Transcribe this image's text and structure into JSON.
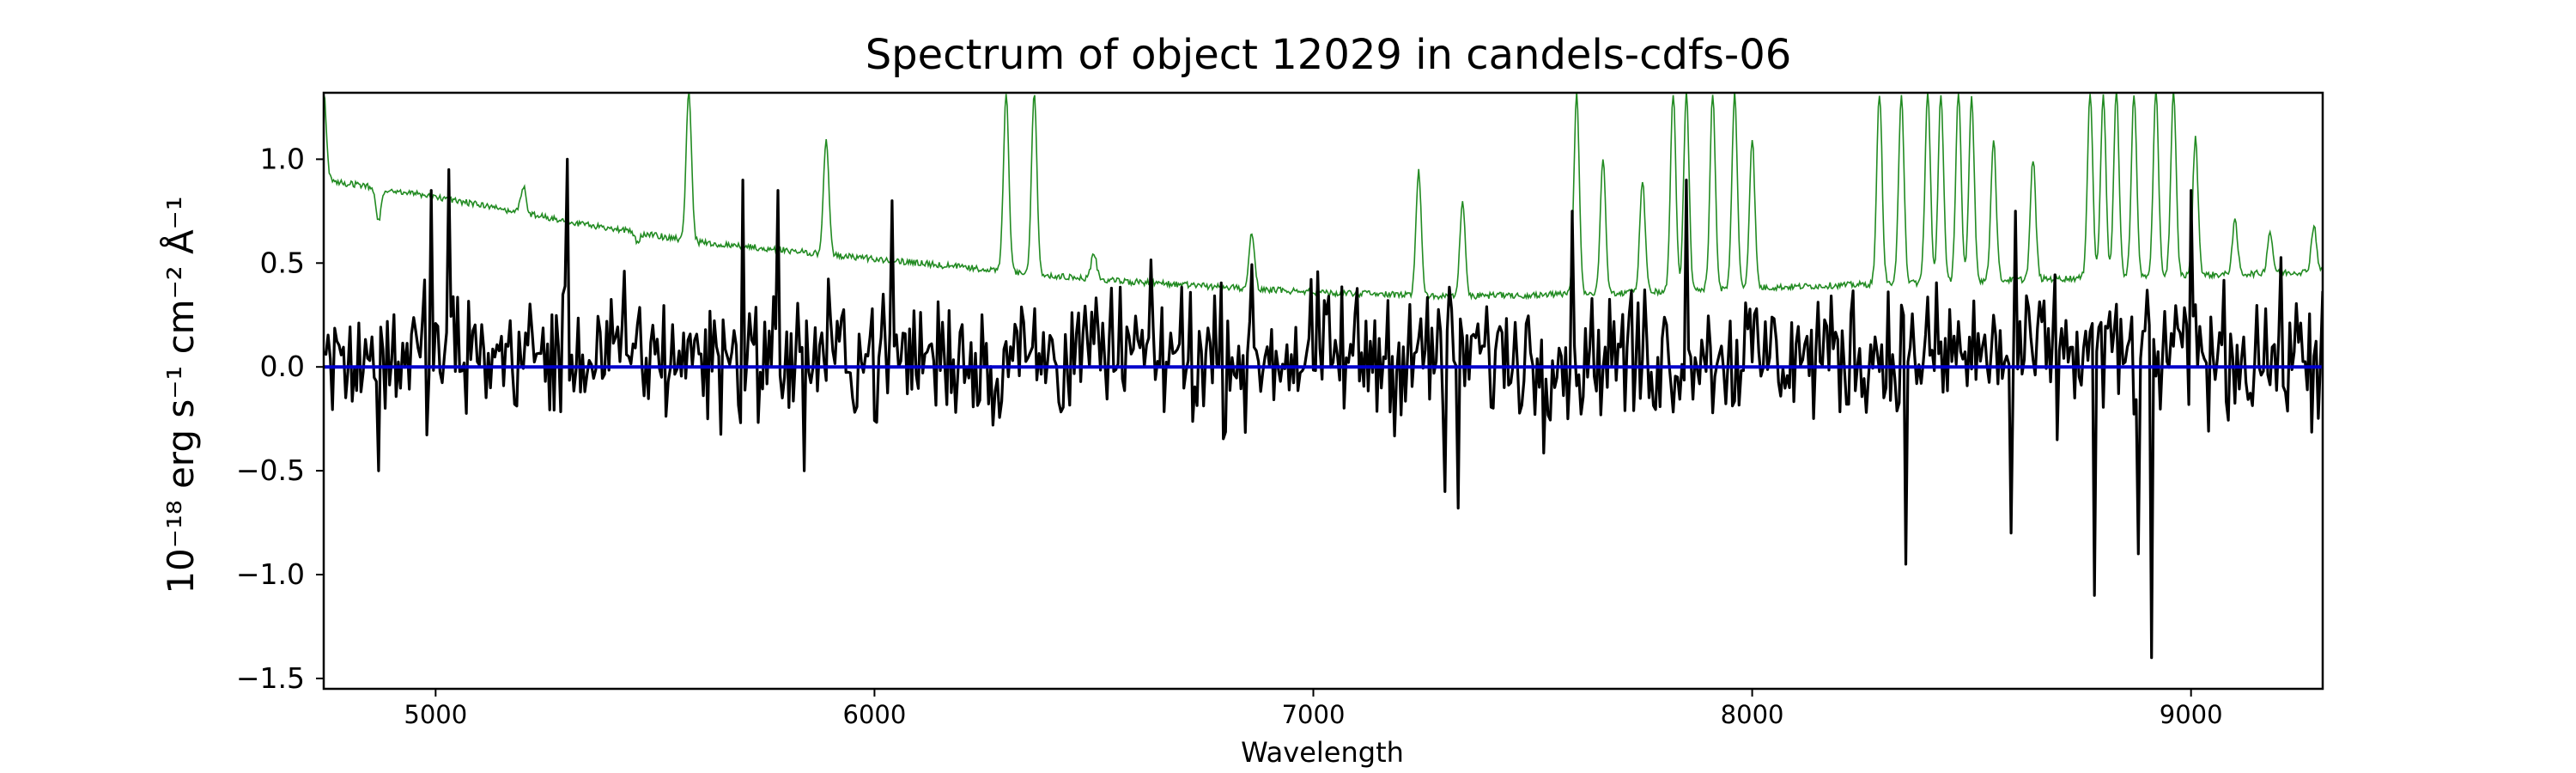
{
  "chart_data": {
    "type": "line",
    "title": "Spectrum of object 12029 in candels-cdfs-06",
    "xlabel": "Wavelength",
    "ylabel": "10⁻¹⁸ erg s⁻¹ cm⁻² Å⁻¹",
    "xlim": [
      4745,
      9300
    ],
    "ylim": [
      -1.55,
      1.32
    ],
    "x_ticks": [
      5000,
      6000,
      7000,
      8000,
      9000
    ],
    "y_ticks": [
      -1.5,
      -1.0,
      -0.5,
      0.0,
      0.5,
      1.0
    ],
    "y_tick_labels": [
      "−1.5",
      "−1.0",
      "−0.5",
      "0.0",
      "0.5",
      "1.0"
    ],
    "grid": false,
    "series": [
      {
        "color": "#228b22",
        "continuum": [
          [
            4745,
            0.9
          ],
          [
            5000,
            0.82
          ],
          [
            5300,
            0.7
          ],
          [
            5600,
            0.6
          ],
          [
            6000,
            0.52
          ],
          [
            6500,
            0.42
          ],
          [
            7000,
            0.36
          ],
          [
            7300,
            0.34
          ],
          [
            7600,
            0.35
          ],
          [
            8000,
            0.38
          ],
          [
            8300,
            0.4
          ],
          [
            8600,
            0.42
          ],
          [
            9000,
            0.44
          ],
          [
            9300,
            0.46
          ]
        ],
        "emission_lines": [
          [
            4745,
            1.32
          ],
          [
            4870,
            0.7
          ],
          [
            5200,
            0.87
          ],
          [
            5460,
            0.6
          ],
          [
            5577,
            1.32
          ],
          [
            5890,
            1.1
          ],
          [
            6300,
            1.32
          ],
          [
            6364,
            1.32
          ],
          [
            6500,
            0.55
          ],
          [
            6860,
            0.65
          ],
          [
            7240,
            0.95
          ],
          [
            7340,
            0.8
          ],
          [
            7600,
            1.32
          ],
          [
            7660,
            1.0
          ],
          [
            7750,
            0.9
          ],
          [
            7820,
            1.32
          ],
          [
            7850,
            1.32
          ],
          [
            7910,
            1.32
          ],
          [
            7960,
            1.32
          ],
          [
            8000,
            1.1
          ],
          [
            8290,
            1.32
          ],
          [
            8340,
            1.32
          ],
          [
            8400,
            1.32
          ],
          [
            8430,
            1.32
          ],
          [
            8470,
            1.32
          ],
          [
            8500,
            1.3
          ],
          [
            8550,
            1.1
          ],
          [
            8640,
            1.0
          ],
          [
            8770,
            1.32
          ],
          [
            8800,
            1.32
          ],
          [
            8830,
            1.32
          ],
          [
            8870,
            1.32
          ],
          [
            8920,
            1.32
          ],
          [
            8960,
            1.32
          ],
          [
            9010,
            1.1
          ],
          [
            9100,
            0.7
          ],
          [
            9180,
            0.65
          ],
          [
            9280,
            0.68
          ]
        ]
      },
      {
        "color": "#000000",
        "mean": 0.06,
        "scatter": 0.3,
        "features": [
          [
            4990,
            0.85
          ],
          [
            5030,
            0.95
          ],
          [
            5300,
            1.0
          ],
          [
            5700,
            0.9
          ],
          [
            5780,
            0.85
          ],
          [
            6040,
            0.8
          ],
          [
            7590,
            0.75
          ],
          [
            7850,
            0.9
          ],
          [
            8600,
            0.75
          ],
          [
            9000,
            0.85
          ],
          [
            6270,
            -0.28
          ],
          [
            7300,
            -0.6
          ],
          [
            7330,
            -0.68
          ],
          [
            8350,
            -0.95
          ],
          [
            8590,
            -0.8
          ],
          [
            8780,
            -1.1
          ],
          [
            8910,
            -1.4
          ],
          [
            8880,
            -0.9
          ],
          [
            5840,
            -0.5
          ],
          [
            4870,
            -0.5
          ]
        ]
      },
      {
        "color": "#0000cc",
        "constant": 0.0
      }
    ]
  }
}
